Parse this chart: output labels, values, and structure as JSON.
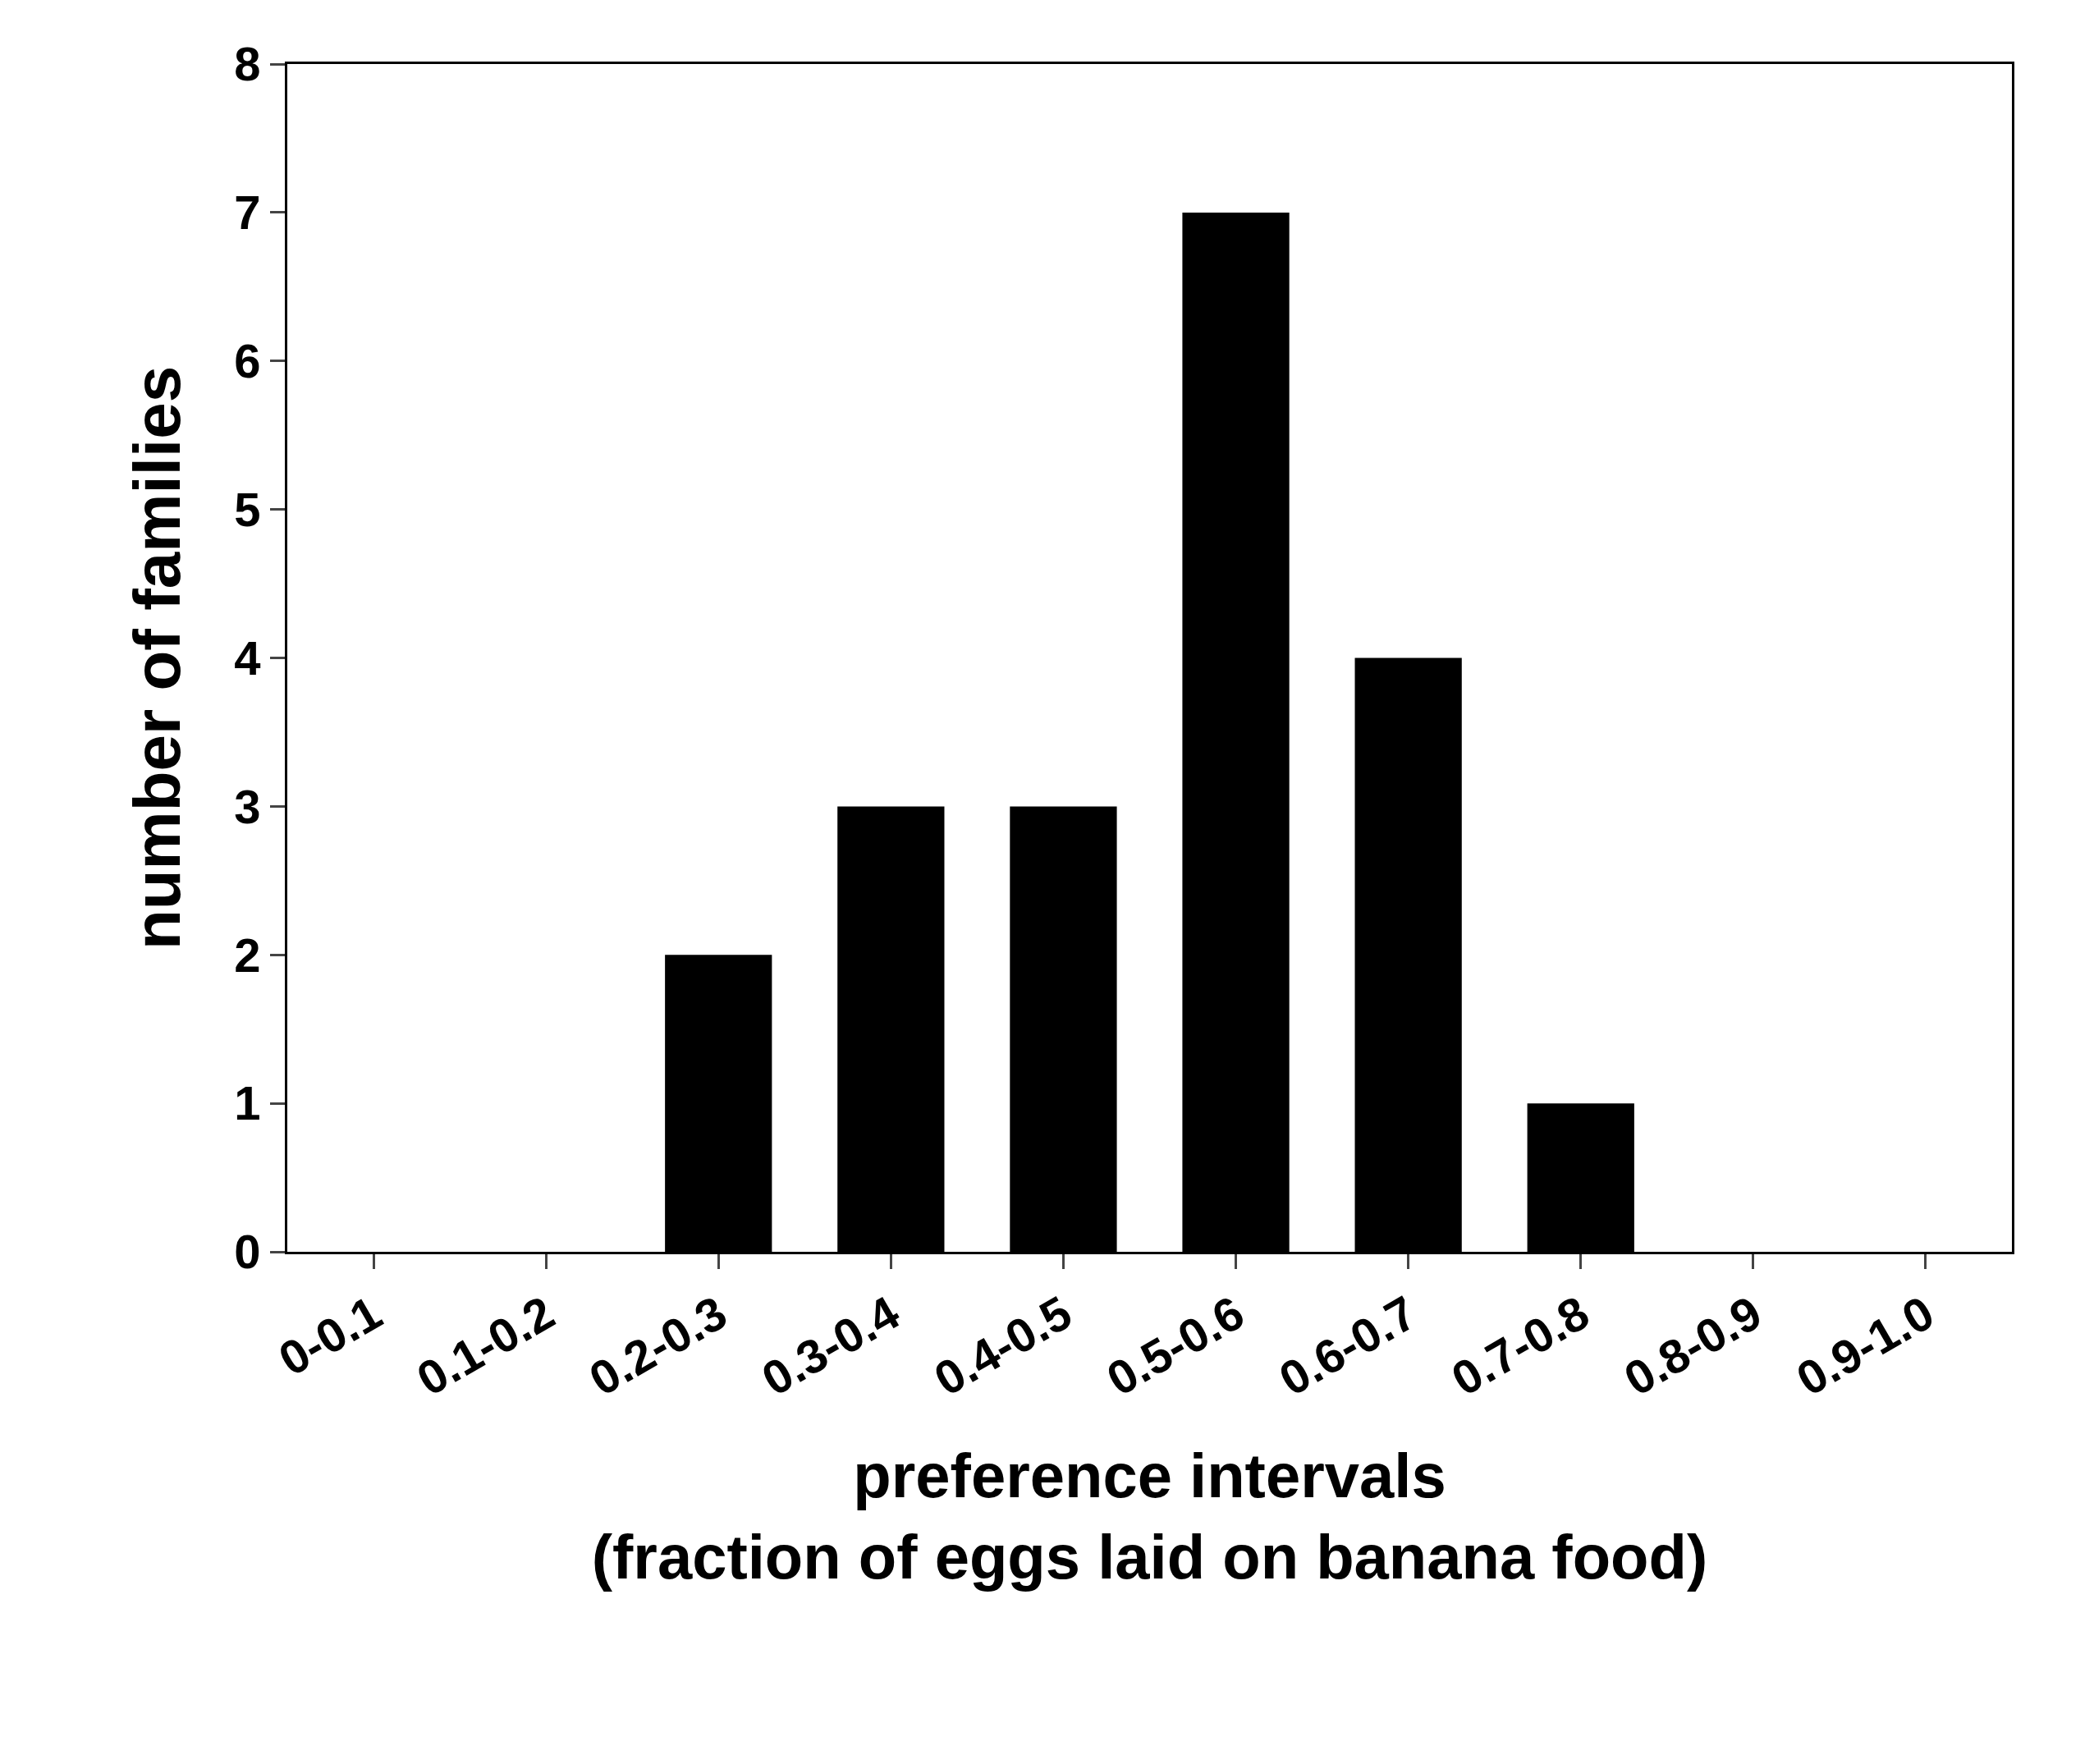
{
  "chart_data": {
    "type": "bar",
    "xlabel": "preference intervals\n(fraction of eggs laid on banana food)",
    "ylabel": "number of families",
    "categories": [
      "0-0.1",
      "0.1-0.2",
      "0.2-0.3",
      "0.3-0.4",
      "0.4-0.5",
      "0.5-0.6",
      "0.6-0.7",
      "0.7-0.8",
      "0.8-0.9",
      "0.9-1.0"
    ],
    "values": [
      0,
      0,
      2,
      3,
      3,
      7,
      4,
      1,
      0,
      0
    ],
    "color": "#000000",
    "ylim": [
      0,
      8
    ],
    "yticks": [
      0,
      1,
      2,
      3,
      4,
      5,
      6,
      7,
      8
    ],
    "grid": false,
    "legend": false
  }
}
